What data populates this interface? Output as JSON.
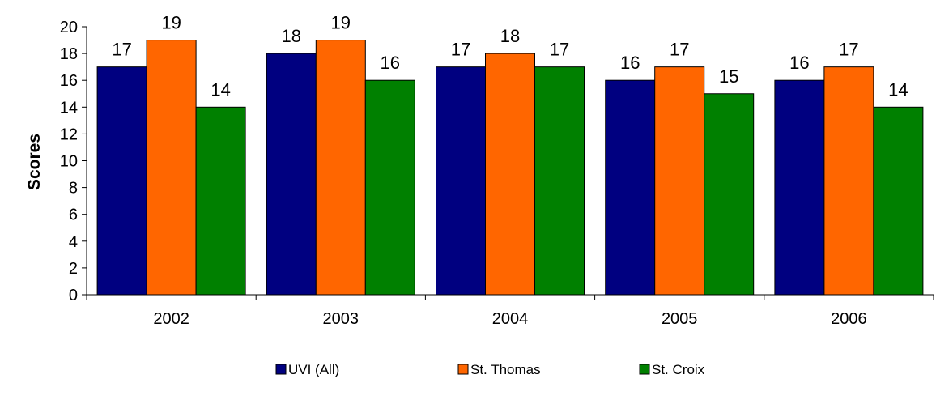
{
  "chart_data": {
    "type": "bar",
    "title": "",
    "xlabel": "",
    "ylabel": "Scores",
    "categories": [
      "2002",
      "2003",
      "2004",
      "2005",
      "2006"
    ],
    "ylim": [
      0,
      20
    ],
    "yticks": [
      "0",
      "2",
      "4",
      "6",
      "8",
      "10",
      "12",
      "14",
      "16",
      "18",
      "20"
    ],
    "grid": false,
    "legend_position": "bottom",
    "series": [
      {
        "name": "UVI (All)",
        "color": "#000080",
        "values": [
          17,
          18,
          17,
          16,
          16
        ]
      },
      {
        "name": "St. Thomas",
        "color": "#ff6600",
        "values": [
          19,
          19,
          18,
          17,
          17
        ]
      },
      {
        "name": "St. Croix",
        "color": "#008000",
        "values": [
          14,
          16,
          17,
          15,
          14
        ]
      }
    ]
  }
}
